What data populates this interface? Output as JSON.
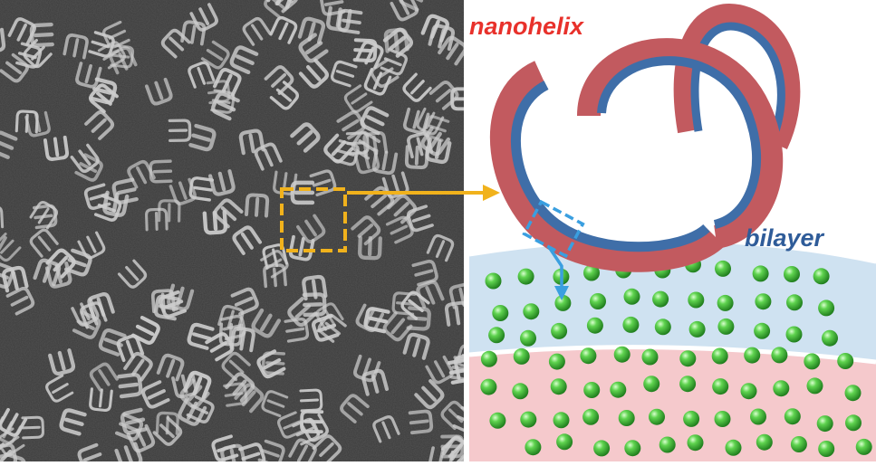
{
  "figure": {
    "labels": {
      "nanohelix": "nanohelix",
      "bilayer": "bilayer"
    },
    "colors": {
      "helix_outer": "#c25a5f",
      "helix_inner": "#3f6ea8",
      "highlight_box": "#f1b21c",
      "zoom_box": "#3a9fe0",
      "bilayer_top_band": "#cfe2f1",
      "bilayer_bottom_band": "#f5c9cc",
      "sphere": "#3cb83a",
      "label_nanohelix": "#e8312b",
      "label_bilayer": "#2f5c99"
    },
    "micrograph": {
      "description_visible": false
    }
  }
}
